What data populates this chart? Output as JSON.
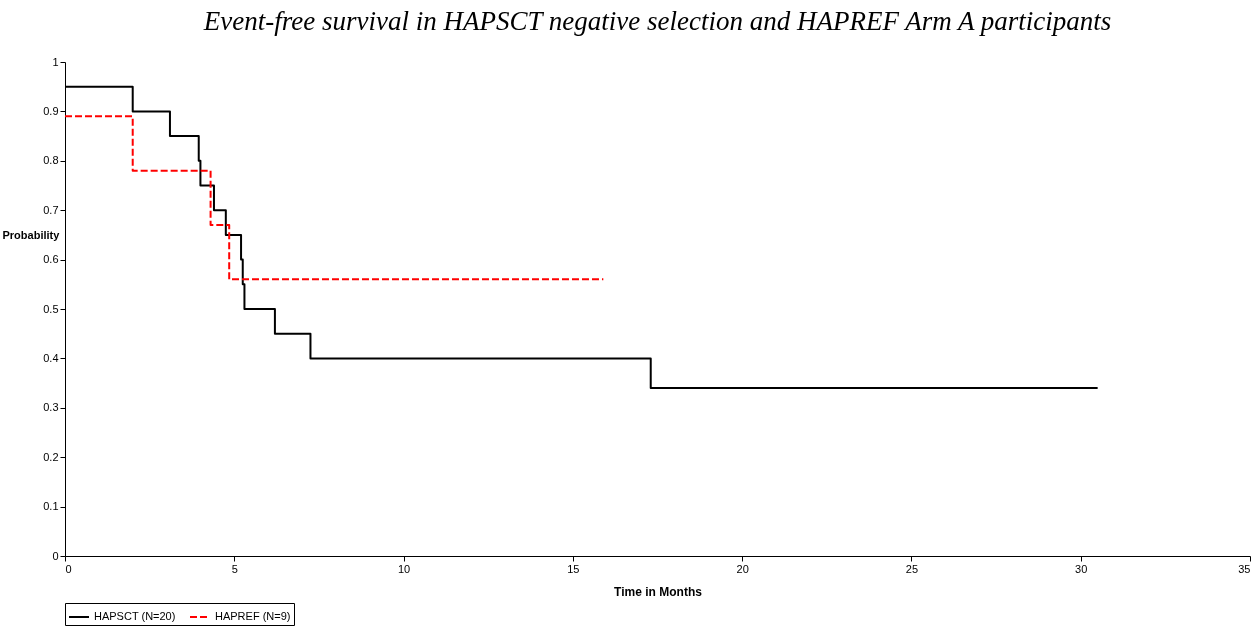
{
  "chart_data": {
    "type": "step",
    "title": "Event-free survival in HAPSCT negative selection and HAPREF Arm A participants",
    "xlabel": "Time in Months",
    "ylabel": "Probability",
    "xlim": [
      0,
      35
    ],
    "xticks": [
      0,
      5,
      10,
      15,
      20,
      25,
      30,
      35
    ],
    "ylim": [
      0,
      1
    ],
    "yticks": [
      0,
      0.1,
      0.2,
      0.3,
      0.4,
      0.5,
      0.6,
      0.7,
      0.8,
      0.9,
      1
    ],
    "grid": false,
    "legend": "bottom",
    "marker": "none",
    "series": [
      {
        "name": "HAPSCT (N=20)",
        "color": "#000000",
        "line_style": "solid",
        "x": [
          0,
          2.0,
          3.1,
          3.95,
          4.0,
          4.4,
          4.75,
          5.2,
          5.25,
          5.3,
          6.2,
          7.25,
          17.3,
          30.5
        ],
        "values": [
          0.95,
          0.9,
          0.85,
          0.8,
          0.75,
          0.7,
          0.65,
          0.6,
          0.55,
          0.5,
          0.45,
          0.4,
          0.34,
          0.34
        ]
      },
      {
        "name": "HAPREF (N=9)",
        "color": "#ff0000",
        "line_style": "dashed",
        "x": [
          0,
          2.0,
          4.3,
          4.85,
          15.9
        ],
        "values": [
          0.89,
          0.78,
          0.67,
          0.56,
          0.56
        ]
      }
    ]
  }
}
